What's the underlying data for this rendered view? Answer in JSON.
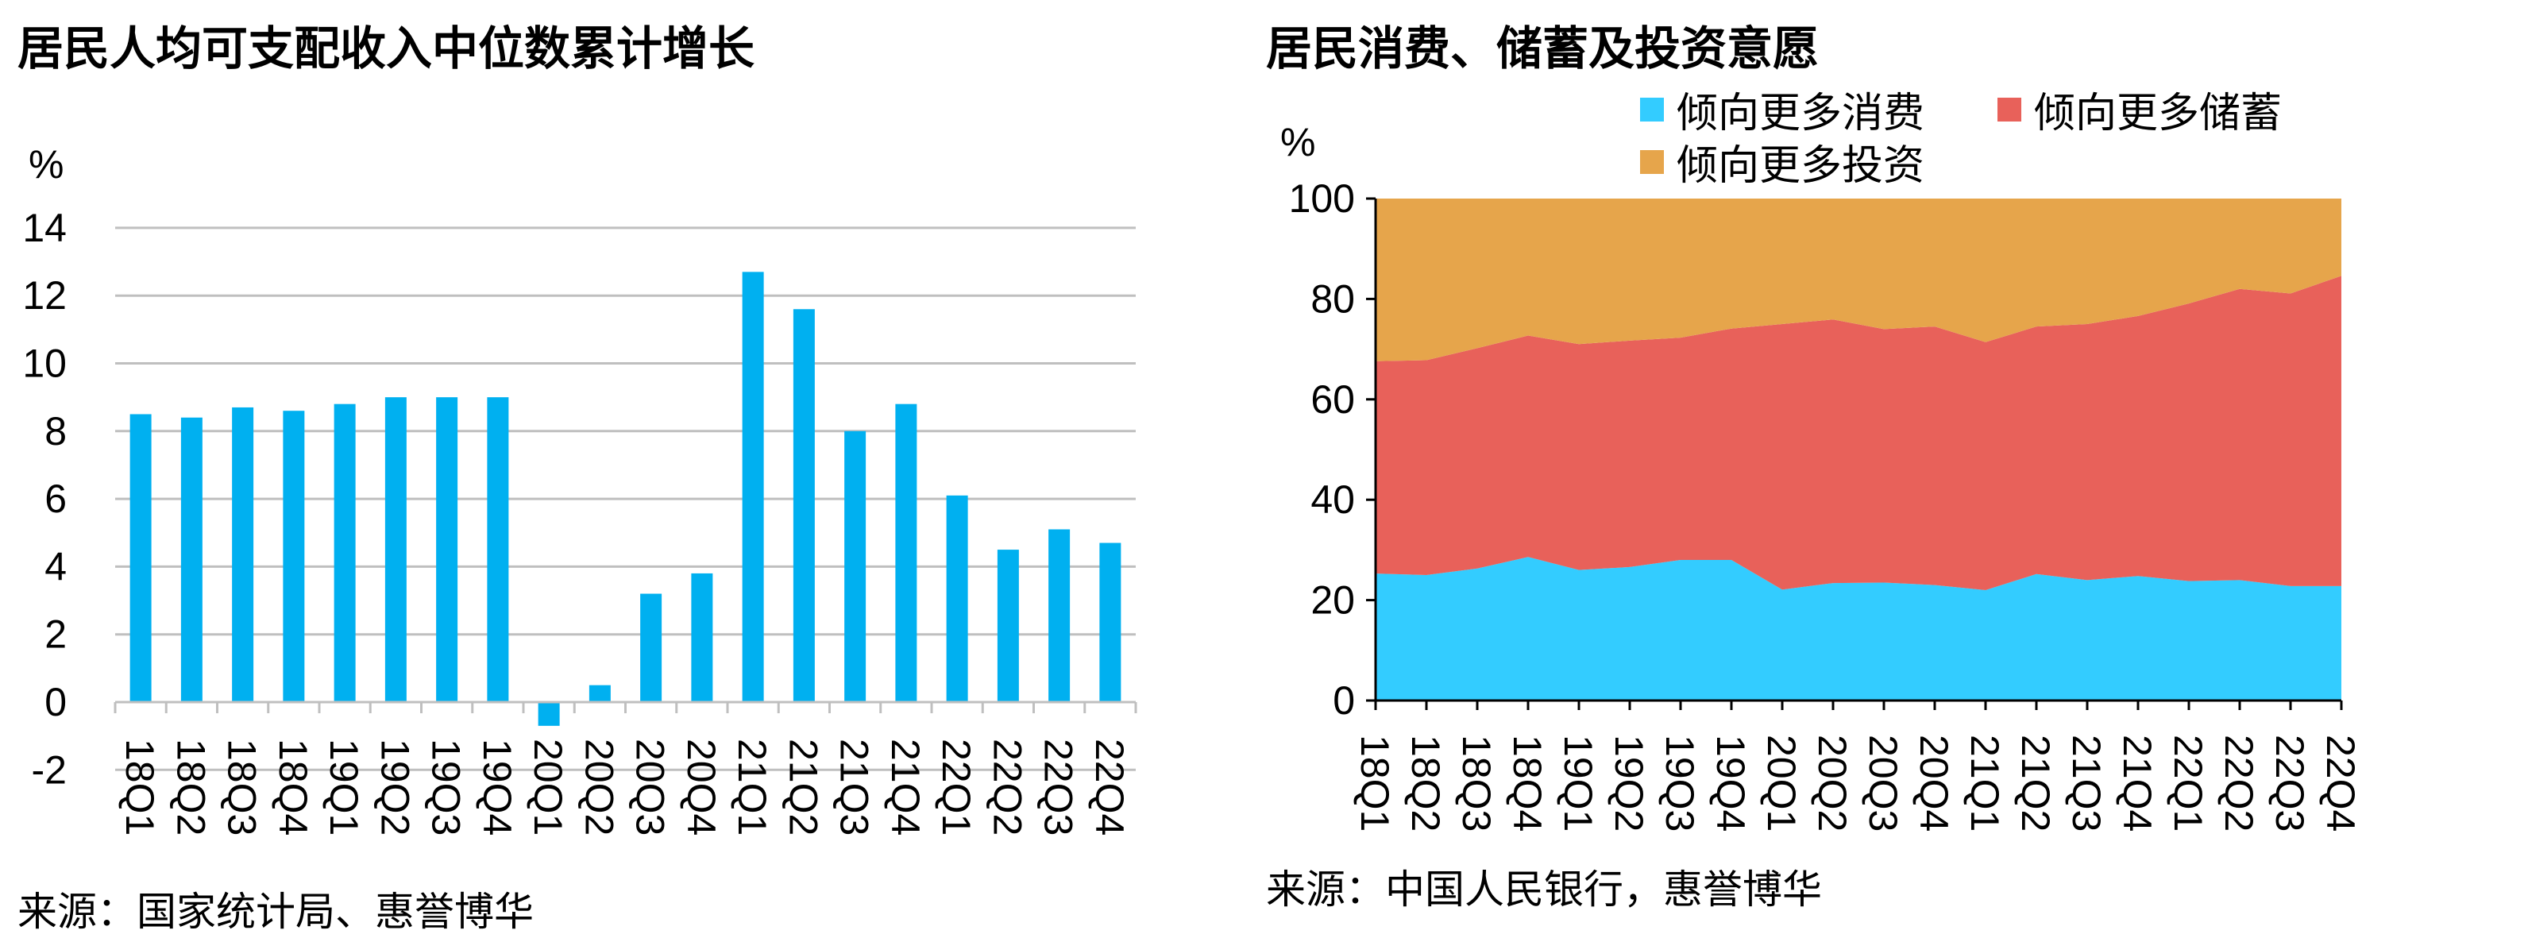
{
  "colors": {
    "bar": "#00B0F0",
    "consume": "#33CCFF",
    "save": "#E8615A",
    "invest": "#E6A54B",
    "grid": "#BFBFBF",
    "axis": "#000000"
  },
  "left": {
    "title": "居民人均可支配收入中位数累计增长",
    "unit": "%",
    "source": "来源：国家统计局、惠誉博华"
  },
  "right": {
    "title": "居民消费、储蓄及投资意愿",
    "unit": "%",
    "source": "来源：中国人民银行，惠誉博华"
  },
  "chart_data": [
    {
      "type": "bar",
      "title": "居民人均可支配收入中位数累计增长",
      "ylabel": "%",
      "ylim": [
        -2,
        14
      ],
      "yticks": [
        -2,
        0,
        2,
        4,
        6,
        8,
        10,
        12,
        14
      ],
      "grid": true,
      "categories": [
        "18Q1",
        "18Q2",
        "18Q3",
        "18Q4",
        "19Q1",
        "19Q2",
        "19Q3",
        "19Q4",
        "20Q1",
        "20Q2",
        "20Q3",
        "20Q4",
        "21Q1",
        "21Q2",
        "21Q3",
        "21Q4",
        "22Q1",
        "22Q2",
        "22Q3",
        "22Q4"
      ],
      "values": [
        8.5,
        8.4,
        8.7,
        8.6,
        8.8,
        9.0,
        9.0,
        9.0,
        -0.7,
        0.5,
        3.2,
        3.8,
        12.7,
        11.6,
        8.0,
        8.8,
        6.1,
        4.5,
        5.1,
        4.7
      ]
    },
    {
      "type": "area",
      "stacked": true,
      "title": "居民消费、储蓄及投资意愿",
      "ylabel": "%",
      "ylim": [
        0,
        100
      ],
      "yticks": [
        0,
        20,
        40,
        60,
        80,
        100
      ],
      "grid": false,
      "legend_position": "top",
      "categories": [
        "18Q1",
        "18Q2",
        "18Q3",
        "18Q4",
        "19Q1",
        "19Q2",
        "19Q3",
        "19Q4",
        "20Q1",
        "20Q2",
        "20Q3",
        "20Q4",
        "21Q1",
        "21Q2",
        "21Q3",
        "21Q4",
        "22Q1",
        "22Q2",
        "22Q3",
        "22Q4"
      ],
      "series": [
        {
          "name": "倾向更多消费",
          "values": [
            25.3,
            25.0,
            26.3,
            28.6,
            26.0,
            26.6,
            28.0,
            28.0,
            22.1,
            23.4,
            23.5,
            23.0,
            22.0,
            25.2,
            24.0,
            24.8,
            23.8,
            24.0,
            22.8,
            22.8
          ]
        },
        {
          "name": "倾向更多储蓄",
          "values": [
            42.3,
            42.8,
            43.9,
            44.1,
            45.0,
            45.1,
            44.3,
            46.1,
            52.9,
            52.5,
            50.5,
            51.5,
            49.4,
            49.3,
            51.0,
            51.8,
            55.3,
            58.0,
            58.3,
            61.8
          ]
        },
        {
          "name": "倾向更多投资",
          "values": [
            32.4,
            32.2,
            29.8,
            27.3,
            29.0,
            28.3,
            27.7,
            25.9,
            25.0,
            24.1,
            26.0,
            25.5,
            28.6,
            25.5,
            25.0,
            23.4,
            20.9,
            18.0,
            18.9,
            15.4
          ]
        }
      ]
    }
  ]
}
